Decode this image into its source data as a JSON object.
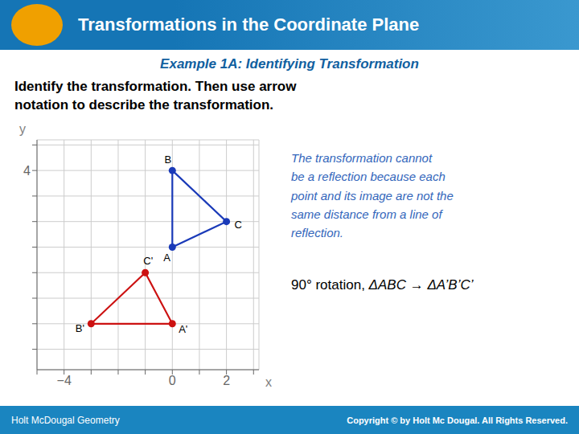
{
  "chart_data": {
    "type": "polygon",
    "title": "Transformations in the Coordinate Plane",
    "subtitle": "Example 1A: Identifying Transformation",
    "annotations": [
      "Identify the transformation. Then use arrow\nnotation to describe the transformation.",
      "The transformation cannot\nbe a reflection because each\npoint and its image are not the\nsame distance from a line of\nreflection.",
      "90° rotation, ",
      "ΔABC → ΔA’B’C’",
      "Holt McDougal Geometry",
      "Copyright © by Holt Mc Dougal. All Rights Reserved."
    ],
    "x_label": "x",
    "y_label": "y",
    "xlim": [
      -5,
      3.2
    ],
    "ylim": [
      -3.8,
      5.2
    ],
    "xticks": [
      {
        "value": -5,
        "label": null
      },
      {
        "value": -4,
        "label": "−4"
      },
      {
        "value": -3,
        "label": null
      },
      {
        "value": -2,
        "label": null
      },
      {
        "value": -1,
        "label": null
      },
      0,
      {
        "value": 1,
        "label": null
      },
      2,
      {
        "value": 3,
        "label": null
      }
    ],
    "yticks": [
      {
        "value": -3,
        "label": null
      },
      {
        "value": -2,
        "label": null
      },
      {
        "value": -1,
        "label": null
      },
      {
        "value": 0,
        "label": null
      },
      {
        "value": 1,
        "label": null
      },
      {
        "value": 2,
        "label": null
      },
      {
        "value": 3,
        "label": null
      },
      4,
      {
        "value": 5,
        "label": null
      }
    ],
    "grid": true,
    "series": [
      {
        "type": "polygon",
        "color": "#1a3ab8",
        "marker": "o",
        "x": [
          0,
          0,
          2
        ],
        "values": [
          1,
          4,
          2
        ],
        "point_labels": [
          "A",
          "B",
          "C"
        ]
      },
      {
        "type": "polygon",
        "color": "#cc1111",
        "marker": "o",
        "x": [
          -1,
          -3,
          0
        ],
        "values": [
          0,
          -2,
          -2
        ],
        "point_labels": [
          "C'",
          "B'",
          "A'"
        ]
      }
    ]
  }
}
